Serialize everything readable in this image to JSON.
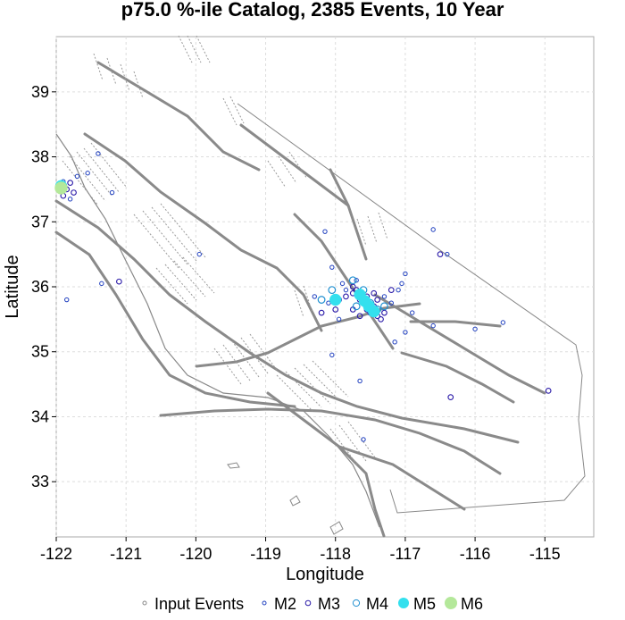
{
  "chart_data": {
    "type": "scatter",
    "title": "p75.0 %-ile Catalog, 2385 Events, 10 Year",
    "xlabel": "Longitude",
    "ylabel": "Latitude",
    "xlim": [
      -122.0,
      -114.3
    ],
    "ylim": [
      32.15,
      39.85
    ],
    "xticks": [
      -122,
      -121,
      -120,
      -119,
      -118,
      -117,
      -116,
      -115
    ],
    "yticks": [
      33,
      34,
      35,
      36,
      37,
      38,
      39
    ],
    "xtick_labels": [
      "-122",
      "-121",
      "-120",
      "-119",
      "-118",
      "-117",
      "-116",
      "-115"
    ],
    "ytick_labels": [
      "33",
      "34",
      "35",
      "36",
      "37",
      "38",
      "39"
    ],
    "grid": true,
    "legend_position": "bottom",
    "legend": [
      {
        "label": "Input Events",
        "style": "small-open-circle",
        "color": "#888888"
      },
      {
        "label": "M2",
        "style": "open-circle",
        "color": "#1f3fbf"
      },
      {
        "label": "M3",
        "style": "open-circle",
        "color": "#2a1aa8"
      },
      {
        "label": "M4",
        "style": "open-circle",
        "color": "#1f8fd0"
      },
      {
        "label": "M5",
        "style": "filled-circle",
        "color": "#33e0ee"
      },
      {
        "label": "M6",
        "style": "filled-circle",
        "color": "#b4e89a"
      }
    ],
    "series": [
      {
        "name": "M2",
        "points": [
          [
            -121.4,
            38.05
          ],
          [
            -121.55,
            37.75
          ],
          [
            -121.2,
            37.45
          ],
          [
            -121.7,
            37.7
          ],
          [
            -121.9,
            37.62
          ],
          [
            -121.8,
            37.35
          ],
          [
            -121.85,
            35.8
          ],
          [
            -121.35,
            36.05
          ],
          [
            -119.95,
            36.5
          ],
          [
            -118.15,
            36.85
          ],
          [
            -118.05,
            36.3
          ],
          [
            -118.3,
            35.85
          ],
          [
            -118.1,
            35.75
          ],
          [
            -117.95,
            35.5
          ],
          [
            -117.85,
            35.95
          ],
          [
            -117.7,
            36.1
          ],
          [
            -117.9,
            36.05
          ],
          [
            -117.5,
            35.65
          ],
          [
            -117.3,
            35.85
          ],
          [
            -117.1,
            35.95
          ],
          [
            -117.2,
            35.75
          ],
          [
            -117.05,
            36.05
          ],
          [
            -116.9,
            35.6
          ],
          [
            -117.0,
            35.3
          ],
          [
            -116.6,
            35.4
          ],
          [
            -117.15,
            35.15
          ],
          [
            -116.4,
            36.5
          ],
          [
            -116.6,
            36.88
          ],
          [
            -116.0,
            35.35
          ],
          [
            -115.6,
            35.45
          ],
          [
            -117.6,
            33.65
          ],
          [
            -117.65,
            34.55
          ],
          [
            -118.05,
            34.95
          ],
          [
            -117.0,
            36.2
          ]
        ]
      },
      {
        "name": "M3",
        "points": [
          [
            -121.95,
            37.55
          ],
          [
            -121.85,
            37.5
          ],
          [
            -121.75,
            37.45
          ],
          [
            -121.8,
            37.6
          ],
          [
            -121.9,
            37.4
          ],
          [
            -121.1,
            36.08
          ],
          [
            -117.85,
            35.85
          ],
          [
            -117.75,
            35.9
          ],
          [
            -117.6,
            35.75
          ],
          [
            -117.55,
            35.65
          ],
          [
            -117.5,
            35.6
          ],
          [
            -117.45,
            35.7
          ],
          [
            -117.4,
            35.55
          ],
          [
            -117.65,
            35.8
          ],
          [
            -117.7,
            35.95
          ],
          [
            -117.55,
            35.85
          ],
          [
            -117.45,
            35.9
          ],
          [
            -117.4,
            35.8
          ],
          [
            -118.0,
            35.65
          ],
          [
            -117.95,
            35.8
          ],
          [
            -117.35,
            35.5
          ],
          [
            -117.3,
            35.6
          ],
          [
            -117.65,
            35.55
          ],
          [
            -117.75,
            35.65
          ],
          [
            -118.2,
            35.6
          ],
          [
            -116.5,
            36.5
          ],
          [
            -116.35,
            34.3
          ],
          [
            -114.95,
            34.4
          ],
          [
            -117.2,
            35.95
          ],
          [
            -117.75,
            36.0
          ]
        ]
      },
      {
        "name": "M4",
        "points": [
          [
            -118.2,
            35.8
          ],
          [
            -117.75,
            36.1
          ],
          [
            -117.6,
            35.95
          ],
          [
            -117.5,
            35.75
          ],
          [
            -117.4,
            35.65
          ],
          [
            -117.7,
            35.7
          ],
          [
            -117.3,
            35.7
          ],
          [
            -118.05,
            35.95
          ],
          [
            -121.9,
            37.55
          ]
        ]
      },
      {
        "name": "M5",
        "points": [
          [
            -118.0,
            35.8
          ],
          [
            -117.65,
            35.88
          ],
          [
            -117.52,
            35.7
          ],
          [
            -117.45,
            35.62
          ],
          [
            -117.58,
            35.78
          ],
          [
            -121.93,
            37.55
          ]
        ]
      },
      {
        "name": "M6",
        "points": [
          [
            -121.93,
            37.52
          ]
        ]
      }
    ]
  }
}
